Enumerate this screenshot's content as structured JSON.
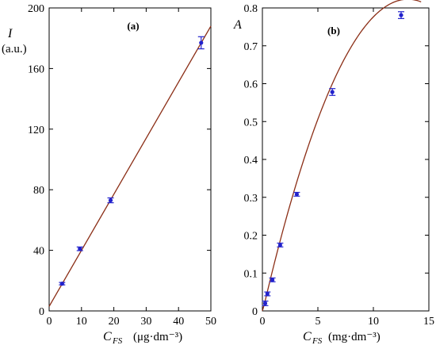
{
  "chart_data": [
    {
      "type": "scatter",
      "panel_label": "(a)",
      "ylabel": "I",
      "ylabel_unit": "(a.u.)",
      "xlabel_main": "C",
      "xlabel_sub": "FS",
      "xlabel_unit": "(μg·dm⁻³)",
      "xlim": [
        0,
        50
      ],
      "ylim": [
        0,
        200
      ],
      "xticks": [
        "0",
        "10",
        "20",
        "30",
        "40",
        "50"
      ],
      "yticks": [
        "0",
        "40",
        "80",
        "120",
        "160",
        "200"
      ],
      "points": [
        {
          "x": 4,
          "y": 18,
          "err": 0.8
        },
        {
          "x": 9.5,
          "y": 41,
          "err": 1.2
        },
        {
          "x": 19,
          "y": 73,
          "err": 1.6
        },
        {
          "x": 47,
          "y": 177,
          "err": 4
        }
      ],
      "fit_line": {
        "x": [
          0,
          50
        ],
        "y": [
          3,
          188
        ]
      },
      "colors": {
        "points": "#2222cc",
        "fit": "#8b2e16"
      }
    },
    {
      "type": "scatter",
      "panel_label": "(b)",
      "ylabel": "A",
      "xlabel_main": "C",
      "xlabel_sub": "FS",
      "xlabel_unit": "(mg·dm⁻³)",
      "xlim": [
        0,
        15
      ],
      "ylim": [
        0,
        0.8
      ],
      "xticks": [
        "0",
        "5",
        "10",
        "15"
      ],
      "yticks": [
        "0",
        "0.1",
        "0.2",
        "0.3",
        "0.4",
        "0.5",
        "0.6",
        "0.7",
        "0.8"
      ],
      "points": [
        {
          "x": 0.25,
          "y": 0.02,
          "err": 0.006
        },
        {
          "x": 0.45,
          "y": 0.045,
          "err": 0.005
        },
        {
          "x": 0.9,
          "y": 0.082,
          "err": 0.005
        },
        {
          "x": 1.6,
          "y": 0.174,
          "err": 0.005
        },
        {
          "x": 3.1,
          "y": 0.308,
          "err": 0.005
        },
        {
          "x": 6.3,
          "y": 0.578,
          "err": 0.009
        },
        {
          "x": 12.5,
          "y": 0.781,
          "err": 0.009
        }
      ],
      "fit_curve": {
        "type": "quadratic",
        "a": -0.004816,
        "b": 0.12625,
        "c": -0.0045,
        "x_range": [
          0,
          14.3
        ]
      },
      "colors": {
        "points": "#2222cc",
        "fit": "#8b2e16"
      }
    }
  ]
}
